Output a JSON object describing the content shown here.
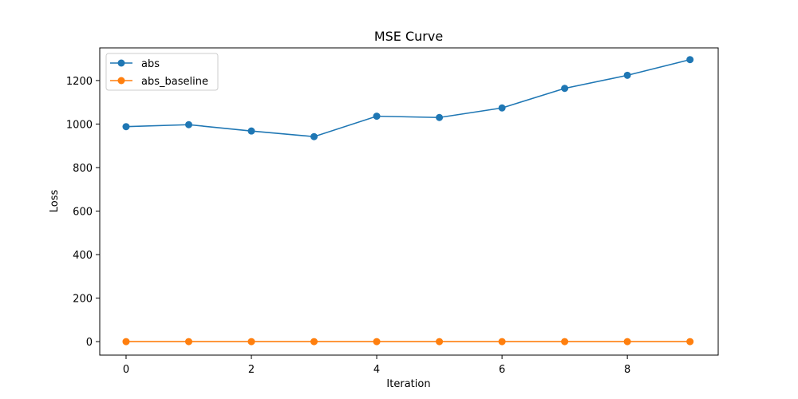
{
  "chart_data": {
    "type": "line",
    "title": "MSE Curve",
    "xlabel": "Iteration",
    "ylabel": "Loss",
    "xlim": [
      -0.42,
      9.45
    ],
    "ylim": [
      -62,
      1350
    ],
    "xticks": [
      0,
      2,
      4,
      6,
      8
    ],
    "yticks": [
      0,
      200,
      400,
      600,
      800,
      1000,
      1200
    ],
    "grid": false,
    "legend_position": "upper-left",
    "x": [
      0,
      1,
      2,
      3,
      4,
      5,
      6,
      7,
      8,
      9
    ],
    "series": [
      {
        "name": "abs",
        "color": "#1f77b4",
        "marker": "circle",
        "values": [
          988,
          997,
          968,
          942,
          1036,
          1030,
          1074,
          1164,
          1224,
          1296
        ]
      },
      {
        "name": "abs_baseline",
        "color": "#ff7f0e",
        "marker": "circle",
        "values": [
          0,
          0,
          0,
          0,
          0,
          0,
          0,
          0,
          0,
          0
        ]
      }
    ]
  }
}
